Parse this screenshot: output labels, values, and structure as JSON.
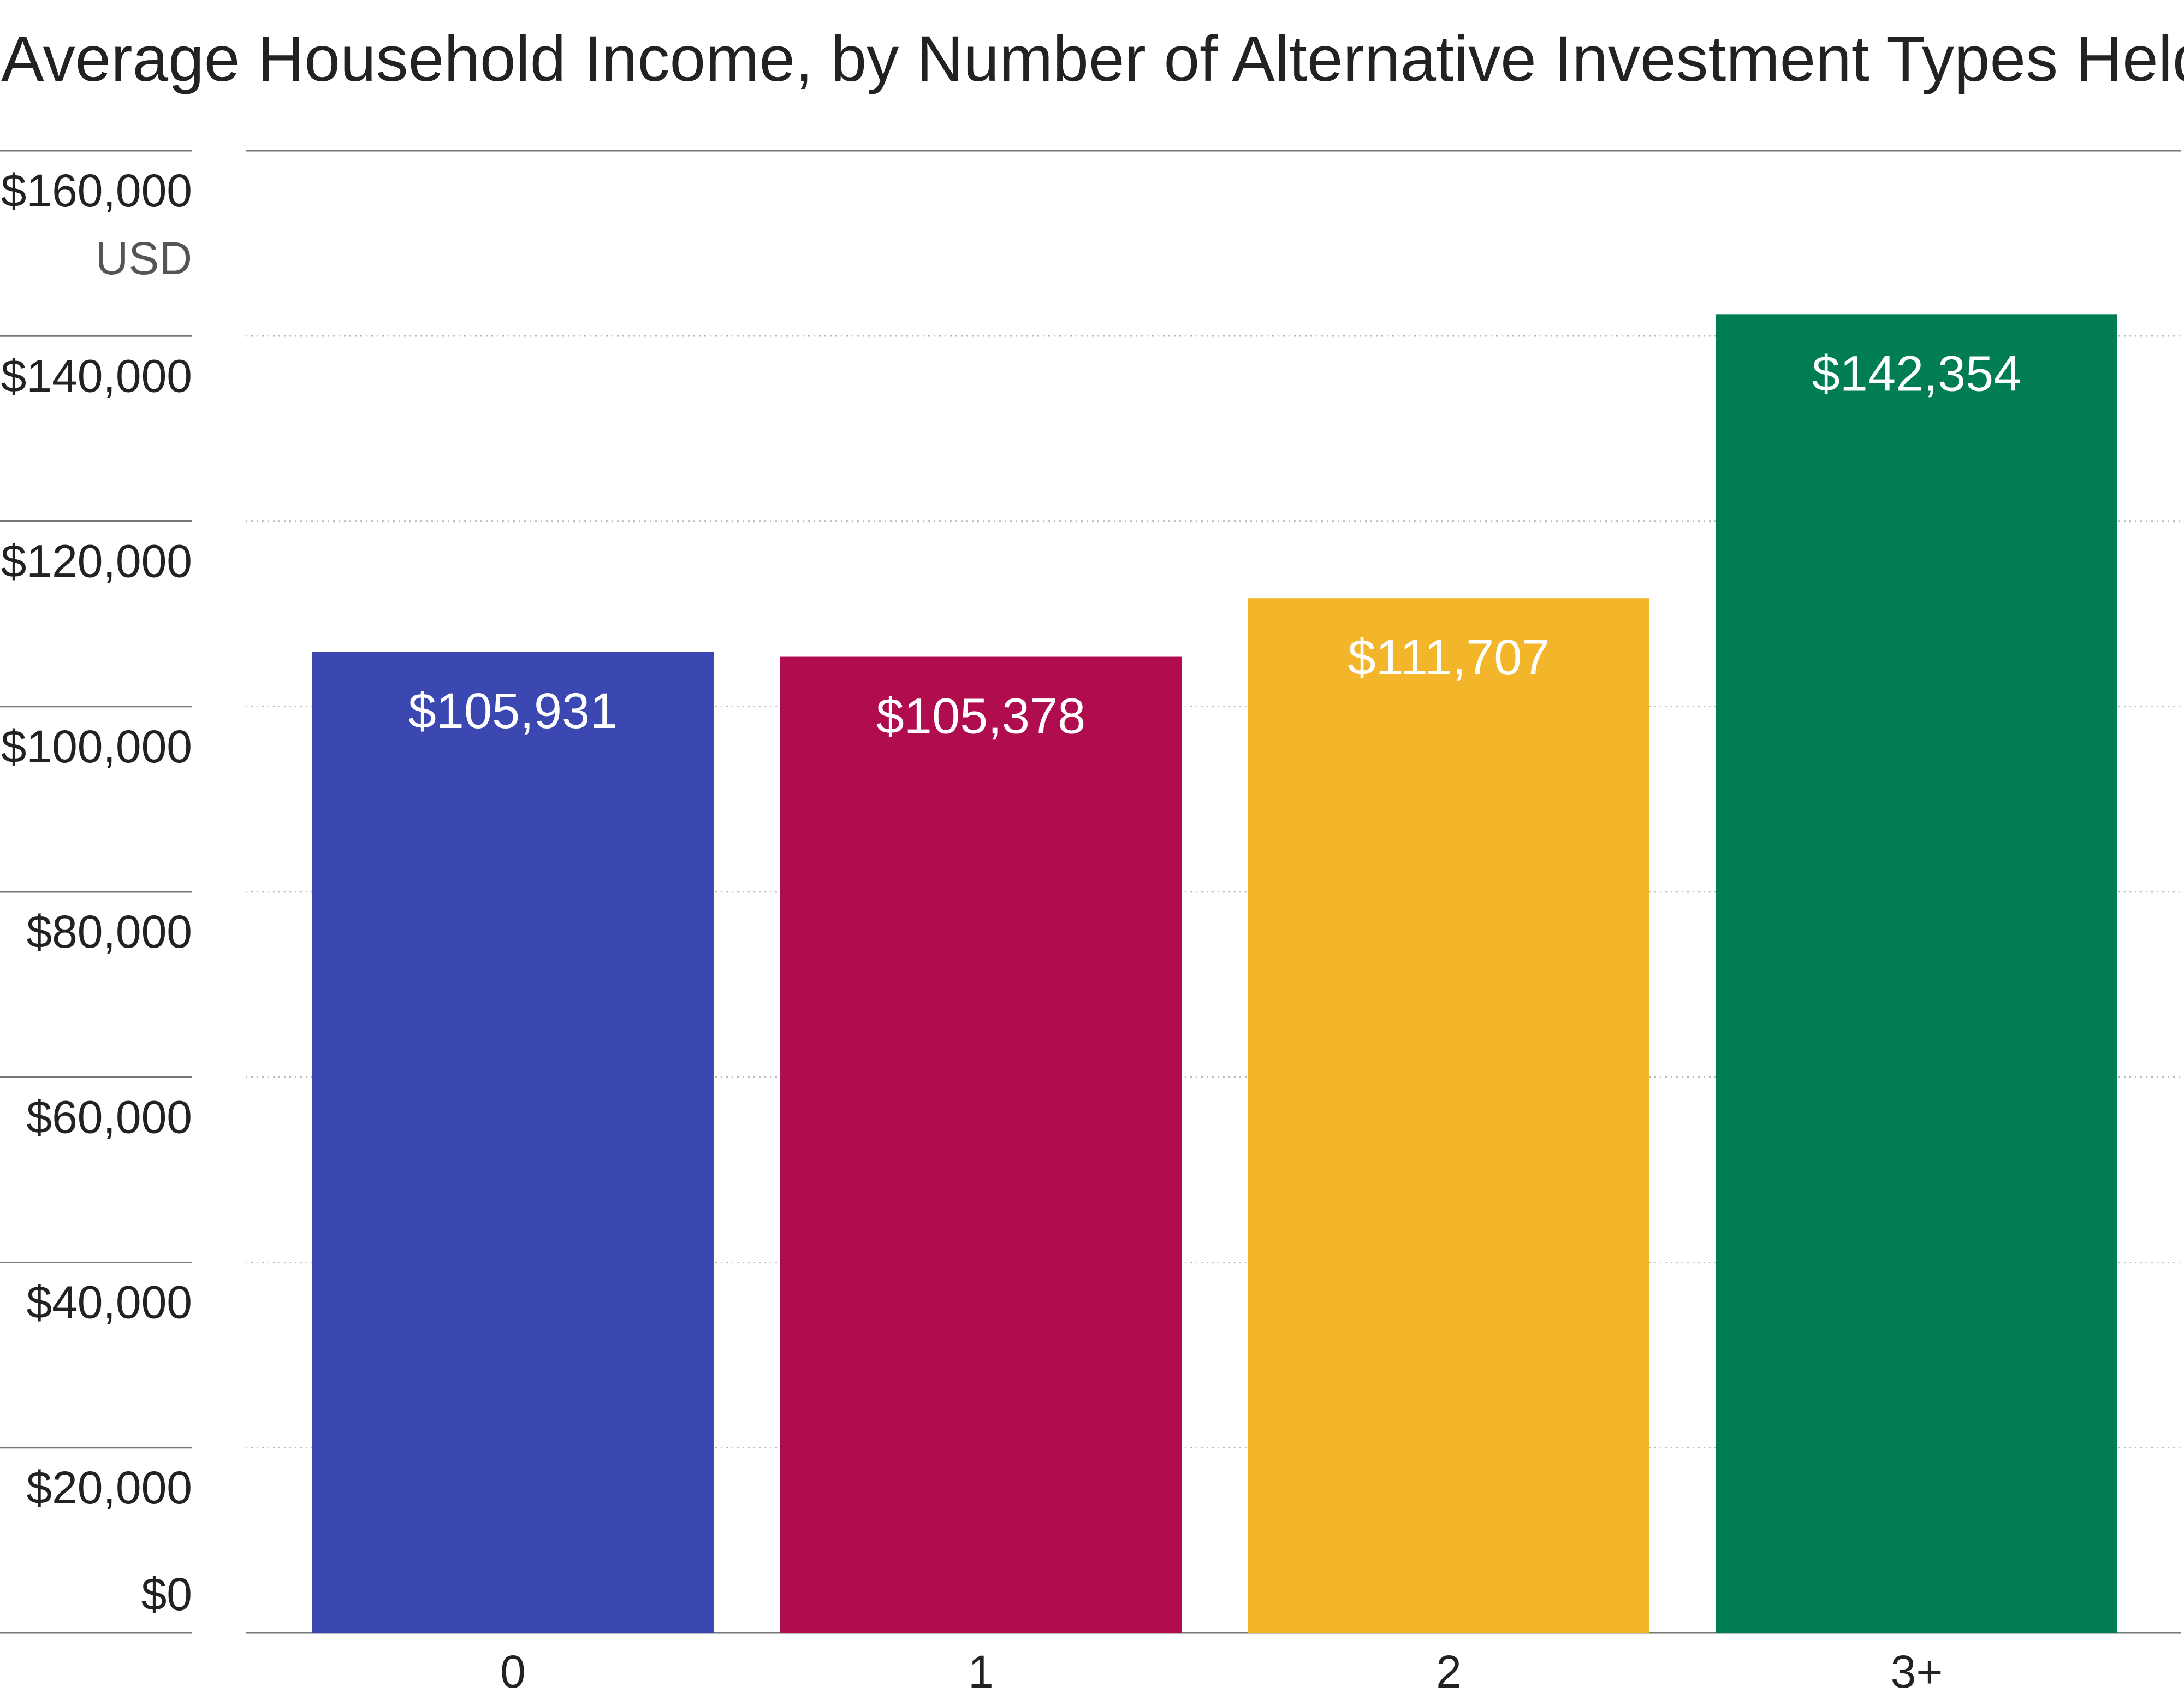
{
  "chart_data": {
    "type": "bar",
    "title": "Average Household Income, by Number of Alternative Investment Types Held",
    "ylabel": "",
    "xlabel": "",
    "y_unit_label": "USD",
    "categories": [
      "0",
      "1",
      "2",
      "3+"
    ],
    "values": [
      105931,
      105378,
      111707,
      142354
    ],
    "value_labels": [
      "$105,931",
      "$105,378",
      "$111,707",
      "$142,354"
    ],
    "bar_colors": [
      "#3c48b2",
      "#b00d4f",
      "#f3b62a",
      "#007d55"
    ],
    "ylim": [
      0,
      160000
    ],
    "y_ticks": [
      {
        "value": 0,
        "label": "$0"
      },
      {
        "value": 20000,
        "label": "$20,000"
      },
      {
        "value": 40000,
        "label": "$40,000"
      },
      {
        "value": 60000,
        "label": "$60,000"
      },
      {
        "value": 80000,
        "label": "$80,000"
      },
      {
        "value": 100000,
        "label": "$100,000"
      },
      {
        "value": 120000,
        "label": "$120,000"
      },
      {
        "value": 140000,
        "label": "$140,000"
      },
      {
        "value": 160000,
        "label": "$160,000"
      }
    ],
    "grid": true,
    "legend": "none"
  }
}
